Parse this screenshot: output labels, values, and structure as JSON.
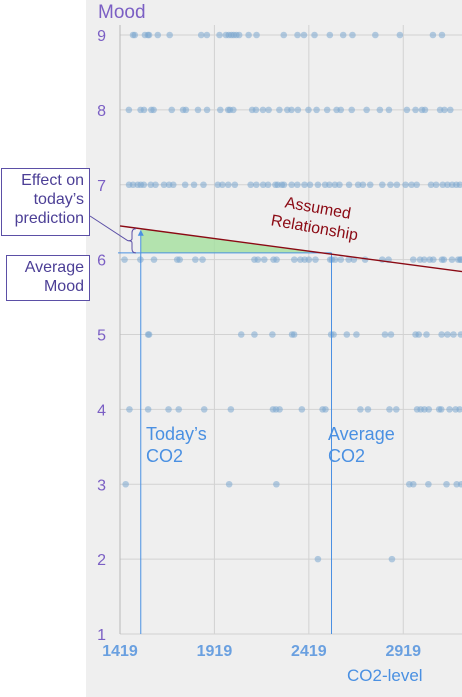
{
  "chart_data": {
    "type": "scatter",
    "ylabel": "Mood",
    "xlabel": "CO2-level",
    "xlim": [
      1419,
      3230
    ],
    "ylim": [
      1,
      9
    ],
    "x_ticks": [
      1419,
      1919,
      2419,
      2919
    ],
    "y_ticks": [
      1,
      2,
      3,
      4,
      5,
      6,
      7,
      8,
      9
    ],
    "grid": true,
    "points": [
      {
        "mood": 9,
        "co2": [
          1488,
          1497,
          1551,
          1567,
          1573,
          1619,
          1682,
          1849,
          1879,
          1946,
          1980,
          1995,
          2009,
          2021,
          2035,
          2050,
          2100,
          2142,
          2286,
          2359,
          2393,
          2449,
          2530,
          2601,
          2650,
          2771,
          2901,
          3076,
          3124
        ]
      },
      {
        "mood": 8,
        "co2": [
          1466,
          1528,
          1546,
          1585,
          1597,
          1693,
          1753,
          1768,
          1832,
          1880,
          1950,
          1992,
          2001,
          2019,
          2119,
          2139,
          2176,
          2206,
          2263,
          2305,
          2327,
          2361,
          2417,
          2460,
          2516,
          2566,
          2588,
          2646,
          2725,
          2795,
          2843,
          2938,
          2984,
          3018,
          3034,
          3114,
          3137,
          3168
        ]
      },
      {
        "mood": 7,
        "co2": [
          1467,
          1488,
          1513,
          1529,
          1545,
          1582,
          1607,
          1652,
          1679,
          1701,
          1764,
          1811,
          1861,
          1937,
          1961,
          1992,
          2027,
          2111,
          2141,
          2177,
          2203,
          2242,
          2254,
          2276,
          2287,
          2328,
          2358,
          2396,
          2425,
          2467,
          2505,
          2528,
          2557,
          2581,
          2632,
          2680,
          2705,
          2744,
          2808,
          2851,
          2885,
          2931,
          2963,
          2990,
          3066,
          3093,
          3128,
          3153,
          3178,
          3200,
          3219
        ]
      },
      {
        "mood": 6,
        "co2": [
          1443,
          1527,
          1599,
          1722,
          1735,
          1818,
          1856,
          2131,
          2149,
          2183,
          2232,
          2248,
          2342,
          2374,
          2397,
          2419,
          2454,
          2532,
          2541,
          2558,
          2588,
          2630,
          2657,
          2717,
          2808,
          2841,
          2972,
          3008,
          3030,
          3059,
          3078,
          3124,
          3134,
          3177,
          3210,
          3226,
          3221
        ]
      },
      {
        "mood": 5,
        "co2": [
          1568,
          1573,
          2061,
          2131,
          2226,
          2330,
          2341,
          2537,
          2550,
          2620,
          2671,
          2822,
          2854,
          2984,
          3001,
          3042,
          3122,
          3153,
          3185,
          3224
        ]
      },
      {
        "mood": 4,
        "co2": [
          1469,
          1568,
          1676,
          1730,
          1865,
          2006,
          2229,
          2245,
          2264,
          2382,
          2492,
          2507,
          2692,
          2732,
          2846,
          2882,
          2992,
          3011,
          3031,
          3054,
          3109,
          3120,
          3164,
          3196,
          3218
        ]
      },
      {
        "mood": 3,
        "co2": [
          1449,
          1997,
          2247,
          2951,
          2972,
          3052,
          3148,
          3202,
          3226
        ]
      },
      {
        "mood": 2,
        "co2": [
          2467,
          2859
        ]
      }
    ],
    "assumed_relationship": {
      "co2": [
        1419,
        3230
      ],
      "mood": [
        6.45,
        5.84
      ]
    },
    "todays_co2": 1529,
    "average_co2": 2539,
    "average_mood": 6.09,
    "annotations": {
      "assumed_relationship": [
        "Assumed",
        "Relationship"
      ],
      "todays_co2": [
        "Today’s",
        "CO2"
      ],
      "average_co2": [
        "Average",
        "CO2"
      ],
      "effect": [
        "Effect on",
        "today’s",
        "prediction"
      ],
      "average_mood": [
        "Average",
        "Mood"
      ]
    },
    "colors": {
      "points": "#7ba7cf",
      "line": "#8b0a14",
      "guide": "#4a90e2",
      "effect_fill": "#a8e0a2",
      "axis_text": "#7b5fc4",
      "tick_x": "#6aa0e0"
    }
  }
}
